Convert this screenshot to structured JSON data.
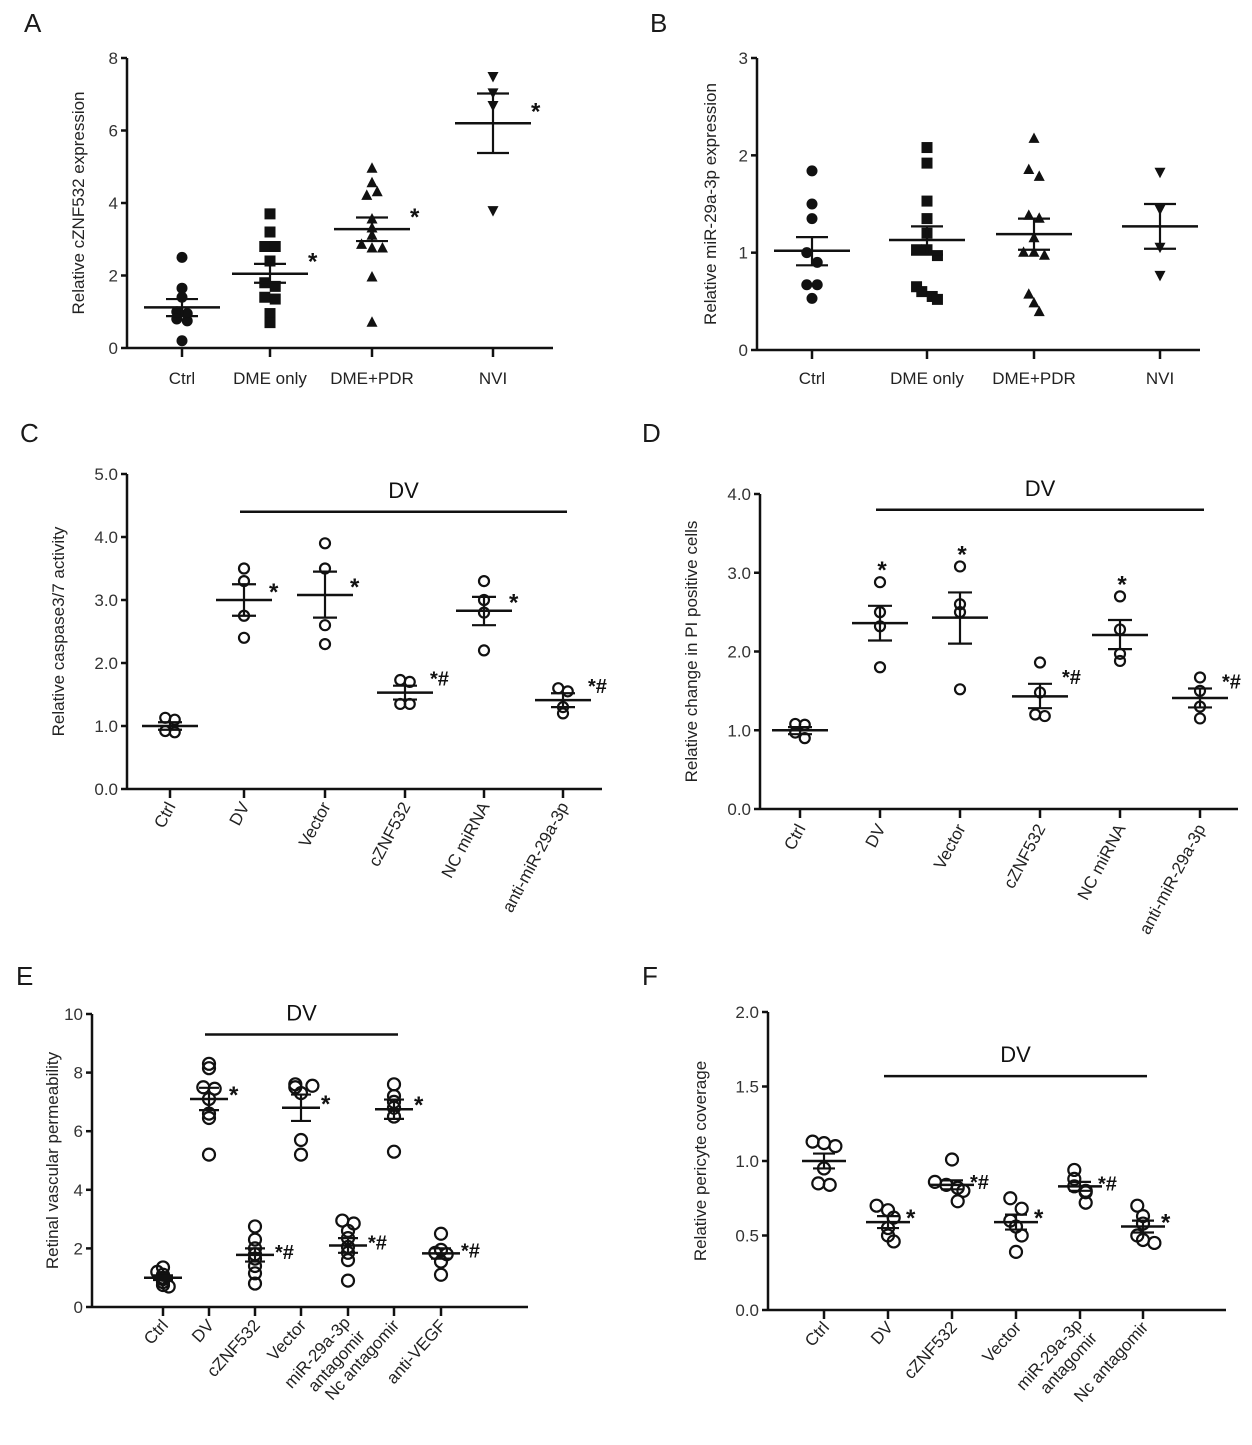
{
  "figure": {
    "panels": [
      "A",
      "B",
      "C",
      "D",
      "E",
      "F"
    ]
  },
  "chart_data": [
    {
      "id": "A",
      "type": "scatter",
      "title": "",
      "xlabel": "",
      "ylabel": "Relative cZNF532 expression",
      "ylim": [
        0,
        8
      ],
      "yticks": [
        "0",
        "2",
        "4",
        "6",
        "8"
      ],
      "ytick_values": [
        0,
        2,
        4,
        6,
        8
      ],
      "categories": [
        "Ctrl",
        "DME only",
        "DME+PDR",
        "NVI"
      ],
      "marker_style": "filled",
      "markers": [
        "circle",
        "square",
        "triangle-up",
        "triangle-down"
      ],
      "series": [
        {
          "name": "Ctrl",
          "values": [
            2.5,
            1.65,
            1.4,
            1.0,
            0.95,
            0.8,
            0.75,
            0.2
          ],
          "mean": 1.12,
          "sem_low": 0.88,
          "sem_high": 1.35,
          "annotation": ""
        },
        {
          "name": "DME only",
          "values": [
            3.7,
            3.2,
            2.8,
            2.8,
            2.4,
            1.8,
            1.7,
            1.4,
            1.35,
            0.95,
            0.7
          ],
          "mean": 2.05,
          "sem_low": 1.8,
          "sem_high": 2.32,
          "annotation": "*"
        },
        {
          "name": "DME+PDR",
          "values": [
            4.95,
            4.55,
            4.2,
            4.3,
            3.55,
            3.3,
            3.1,
            2.85,
            2.75,
            2.75,
            1.95,
            0.7
          ],
          "mean": 3.28,
          "sem_low": 2.95,
          "sem_high": 3.6,
          "annotation": "*"
        },
        {
          "name": "NVI",
          "values": [
            7.5,
            7.05,
            6.7,
            3.8
          ],
          "mean": 6.2,
          "sem_low": 5.38,
          "sem_high": 7.02,
          "annotation": "*"
        }
      ],
      "bracket": null
    },
    {
      "id": "B",
      "type": "scatter",
      "title": "",
      "xlabel": "",
      "ylabel": "Relative miR-29a-3p expression",
      "ylim": [
        0,
        3
      ],
      "yticks": [
        "0",
        "1",
        "2",
        "3"
      ],
      "ytick_values": [
        0,
        1,
        2,
        3
      ],
      "categories": [
        "Ctrl",
        "DME only",
        "DME+PDR",
        "NVI"
      ],
      "marker_style": "filled",
      "markers": [
        "circle",
        "square",
        "triangle-up",
        "triangle-down"
      ],
      "series": [
        {
          "name": "Ctrl",
          "values": [
            1.84,
            1.5,
            1.35,
            1.0,
            0.9,
            0.67,
            0.67,
            0.53
          ],
          "mean": 1.02,
          "sem_low": 0.87,
          "sem_high": 1.16,
          "annotation": ""
        },
        {
          "name": "DME only",
          "values": [
            2.08,
            1.92,
            1.53,
            1.35,
            1.2,
            1.03,
            1.03,
            0.97,
            0.65,
            0.6,
            0.55,
            0.52
          ],
          "mean": 1.13,
          "sem_low": 0.98,
          "sem_high": 1.27,
          "annotation": ""
        },
        {
          "name": "DME+PDR",
          "values": [
            2.17,
            1.85,
            1.78,
            1.38,
            1.35,
            1.15,
            1.0,
            1.0,
            0.97,
            0.57,
            0.48,
            0.39
          ],
          "mean": 1.19,
          "sem_low": 1.03,
          "sem_high": 1.35,
          "annotation": ""
        },
        {
          "name": "NVI",
          "values": [
            1.83,
            1.45,
            1.06,
            0.77
          ],
          "mean": 1.27,
          "sem_low": 1.04,
          "sem_high": 1.5,
          "annotation": ""
        }
      ],
      "bracket": null
    },
    {
      "id": "C",
      "type": "scatter",
      "title": "",
      "xlabel": "",
      "ylabel": "Relative caspase3/7 activity",
      "ylim": [
        0,
        5
      ],
      "yticks": [
        "0.0",
        "1.0",
        "2.0",
        "3.0",
        "4.0",
        "5.0"
      ],
      "ytick_values": [
        0,
        1,
        2,
        3,
        4,
        5
      ],
      "categories": [
        "Ctrl",
        "DV",
        "Vector",
        "cZNF532",
        "NC miRNA",
        "anti-miR-29a-3p"
      ],
      "marker_style": "open",
      "markers": [
        "circle",
        "circle",
        "circle",
        "circle",
        "circle",
        "circle"
      ],
      "series": [
        {
          "name": "Ctrl",
          "values": [
            1.13,
            1.1,
            0.92,
            0.9
          ],
          "mean": 1.0,
          "sem_low": 0.94,
          "sem_high": 1.06,
          "annotation": ""
        },
        {
          "name": "DV",
          "values": [
            3.5,
            3.3,
            2.75,
            2.4
          ],
          "mean": 3.0,
          "sem_low": 2.75,
          "sem_high": 3.25,
          "annotation": "*"
        },
        {
          "name": "Vector",
          "values": [
            3.9,
            3.5,
            2.6,
            2.3
          ],
          "mean": 3.08,
          "sem_low": 2.72,
          "sem_high": 3.45,
          "annotation": "*"
        },
        {
          "name": "cZNF532",
          "values": [
            1.73,
            1.7,
            1.35,
            1.35
          ],
          "mean": 1.53,
          "sem_low": 1.42,
          "sem_high": 1.64,
          "annotation": "*#"
        },
        {
          "name": "NC miRNA",
          "values": [
            3.3,
            3.0,
            2.8,
            2.2
          ],
          "mean": 2.83,
          "sem_low": 2.6,
          "sem_high": 3.05,
          "annotation": "*"
        },
        {
          "name": "anti-miR-29a-3p",
          "values": [
            1.6,
            1.55,
            1.3,
            1.2
          ],
          "mean": 1.41,
          "sem_low": 1.3,
          "sem_high": 1.52,
          "annotation": "*#"
        }
      ],
      "bracket": {
        "label": "DV",
        "from": "DV",
        "to": "anti-miR-29a-3p",
        "y": 4.4
      }
    },
    {
      "id": "D",
      "type": "scatter",
      "title": "",
      "xlabel": "",
      "ylabel": "Relative change in PI positive cells",
      "ylim": [
        0,
        4
      ],
      "yticks": [
        "0.0",
        "1.0",
        "2.0",
        "3.0",
        "4.0"
      ],
      "ytick_values": [
        0,
        1,
        2,
        3,
        4
      ],
      "categories": [
        "Ctrl",
        "DV",
        "Vector",
        "cZNF532",
        "NC miRNA",
        "anti-miR-29a-3p"
      ],
      "marker_style": "open",
      "markers": [
        "circle",
        "circle",
        "circle",
        "circle",
        "circle",
        "circle"
      ],
      "series": [
        {
          "name": "Ctrl",
          "values": [
            1.08,
            1.07,
            0.97,
            0.9
          ],
          "mean": 1.0,
          "sem_low": 0.95,
          "sem_high": 1.04,
          "annotation": ""
        },
        {
          "name": "DV",
          "values": [
            2.88,
            2.5,
            2.32,
            1.8
          ],
          "mean": 2.36,
          "sem_low": 2.14,
          "sem_high": 2.58,
          "annotation": "*"
        },
        {
          "name": "Vector",
          "values": [
            3.08,
            2.6,
            2.5,
            1.52
          ],
          "mean": 2.43,
          "sem_low": 2.1,
          "sem_high": 2.75,
          "annotation": "*"
        },
        {
          "name": "cZNF532",
          "values": [
            1.86,
            1.48,
            1.2,
            1.18
          ],
          "mean": 1.43,
          "sem_low": 1.28,
          "sem_high": 1.59,
          "annotation": "*#"
        },
        {
          "name": "NC miRNA",
          "values": [
            2.7,
            2.28,
            1.97,
            1.88
          ],
          "mean": 2.21,
          "sem_low": 2.03,
          "sem_high": 2.4,
          "annotation": "*"
        },
        {
          "name": "anti-miR-29a-3p",
          "values": [
            1.67,
            1.5,
            1.3,
            1.15
          ],
          "mean": 1.41,
          "sem_low": 1.29,
          "sem_high": 1.53,
          "annotation": "*#"
        }
      ],
      "bracket": {
        "label": "DV",
        "from": "DV",
        "to": "anti-miR-29a-3p",
        "y": 3.8
      }
    },
    {
      "id": "E",
      "type": "scatter",
      "title": "",
      "xlabel": "",
      "ylabel": "Retinal vascular permeability",
      "ylim": [
        0,
        10
      ],
      "yticks": [
        "0",
        "2",
        "4",
        "6",
        "8",
        "10"
      ],
      "ytick_values": [
        0,
        2,
        4,
        6,
        8,
        10
      ],
      "categories": [
        "Ctrl",
        "DV",
        "cZNF532",
        "Vector",
        "miR-29a-3p antagomir",
        "Nc antagomir",
        "anti-VEGF"
      ],
      "category_lines": [
        [
          "Ctrl"
        ],
        [
          "DV"
        ],
        [
          "cZNF532"
        ],
        [
          "Vector"
        ],
        [
          "miR-29a-3p",
          "antagomir"
        ],
        [
          "Nc antagomir"
        ],
        [
          "anti-VEGF"
        ]
      ],
      "marker_style": "open",
      "markers": [
        "circle",
        "circle",
        "circle",
        "circle",
        "circle",
        "circle",
        "circle"
      ],
      "series": [
        {
          "name": "Ctrl",
          "values": [
            1.35,
            1.2,
            1.1,
            1.0,
            0.95,
            0.85,
            0.75,
            0.7
          ],
          "mean": 1.0,
          "sem_low": 0.92,
          "sem_high": 1.08,
          "annotation": ""
        },
        {
          "name": "DV",
          "values": [
            8.3,
            8.15,
            7.5,
            7.45,
            7.1,
            6.6,
            6.45,
            5.2
          ],
          "mean": 7.1,
          "sem_low": 6.72,
          "sem_high": 7.48,
          "annotation": "*"
        },
        {
          "name": "Vector",
          "values": [
            7.6,
            7.5,
            7.55,
            7.3,
            5.7,
            5.2
          ],
          "mean": 6.8,
          "sem_low": 6.35,
          "sem_high": 7.25,
          "annotation": "*"
        },
        {
          "name": "Nc antagomir",
          "values": [
            7.6,
            7.2,
            7.0,
            6.8,
            6.5,
            5.3
          ],
          "mean": 6.75,
          "sem_low": 6.42,
          "sem_high": 7.08,
          "annotation": "*"
        },
        {
          "name": "cZNF532",
          "values": [
            2.75,
            2.3,
            2.0,
            1.8,
            1.65,
            1.4,
            1.15,
            0.8
          ],
          "mean": 1.78,
          "sem_low": 1.55,
          "sem_high": 2.0,
          "annotation": "*#"
        },
        {
          "name": "miR-29a-3p antagomir",
          "values": [
            2.95,
            2.85,
            2.6,
            2.35,
            2.05,
            1.85,
            1.6,
            0.9
          ],
          "mean": 2.1,
          "sem_low": 1.85,
          "sem_high": 2.35,
          "annotation": "*#"
        },
        {
          "name": "anti-VEGF",
          "values": [
            2.5,
            1.95,
            1.85,
            1.8,
            1.55,
            1.1
          ],
          "mean": 1.83,
          "sem_low": 1.65,
          "sem_high": 2.0,
          "annotation": "*#"
        }
      ],
      "bracket": {
        "label": "DV",
        "from": "DV",
        "to": "Nc antagomir",
        "y": 9.3
      }
    },
    {
      "id": "F",
      "type": "scatter",
      "title": "",
      "xlabel": "",
      "ylabel": "Relative pericyte coverage",
      "ylim": [
        0,
        2
      ],
      "yticks": [
        "0.0",
        "0.5",
        "1.0",
        "1.5",
        "2.0"
      ],
      "ytick_values": [
        0,
        0.5,
        1,
        1.5,
        2
      ],
      "categories": [
        "Ctrl",
        "DV",
        "cZNF532",
        "Vector",
        "miR-29a-3p antagomir",
        "Nc antagomir"
      ],
      "category_lines": [
        [
          "Ctrl"
        ],
        [
          "DV"
        ],
        [
          "cZNF532"
        ],
        [
          "Vector"
        ],
        [
          "miR-29a-3p",
          "antagomir"
        ],
        [
          "Nc antagomir"
        ]
      ],
      "marker_style": "open",
      "markers": [
        "circle",
        "circle",
        "circle",
        "circle",
        "circle",
        "circle"
      ],
      "series": [
        {
          "name": "Ctrl",
          "values": [
            1.13,
            1.12,
            1.1,
            0.95,
            0.85,
            0.84
          ],
          "mean": 1.0,
          "sem_low": 0.95,
          "sem_high": 1.05,
          "annotation": ""
        },
        {
          "name": "DV",
          "values": [
            0.7,
            0.67,
            0.62,
            0.55,
            0.5,
            0.46
          ],
          "mean": 0.59,
          "sem_low": 0.55,
          "sem_high": 0.63,
          "annotation": "*"
        },
        {
          "name": "cZNF532",
          "values": [
            1.01,
            0.86,
            0.84,
            0.82,
            0.8,
            0.73
          ],
          "mean": 0.84,
          "sem_low": 0.81,
          "sem_high": 0.87,
          "annotation": "*#"
        },
        {
          "name": "Vector",
          "values": [
            0.75,
            0.68,
            0.6,
            0.56,
            0.5,
            0.39
          ],
          "mean": 0.59,
          "sem_low": 0.54,
          "sem_high": 0.64,
          "annotation": "*"
        },
        {
          "name": "miR-29a-3p antagomir",
          "values": [
            0.94,
            0.88,
            0.83,
            0.8,
            0.79,
            0.72
          ],
          "mean": 0.83,
          "sem_low": 0.8,
          "sem_high": 0.86,
          "annotation": "*#"
        },
        {
          "name": "Nc antagomir",
          "values": [
            0.7,
            0.63,
            0.58,
            0.5,
            0.47,
            0.45
          ],
          "mean": 0.56,
          "sem_low": 0.52,
          "sem_high": 0.6,
          "annotation": "*"
        }
      ],
      "bracket": {
        "label": "DV",
        "from": "DV",
        "to": "Nc antagomir",
        "y": 1.57
      }
    }
  ]
}
